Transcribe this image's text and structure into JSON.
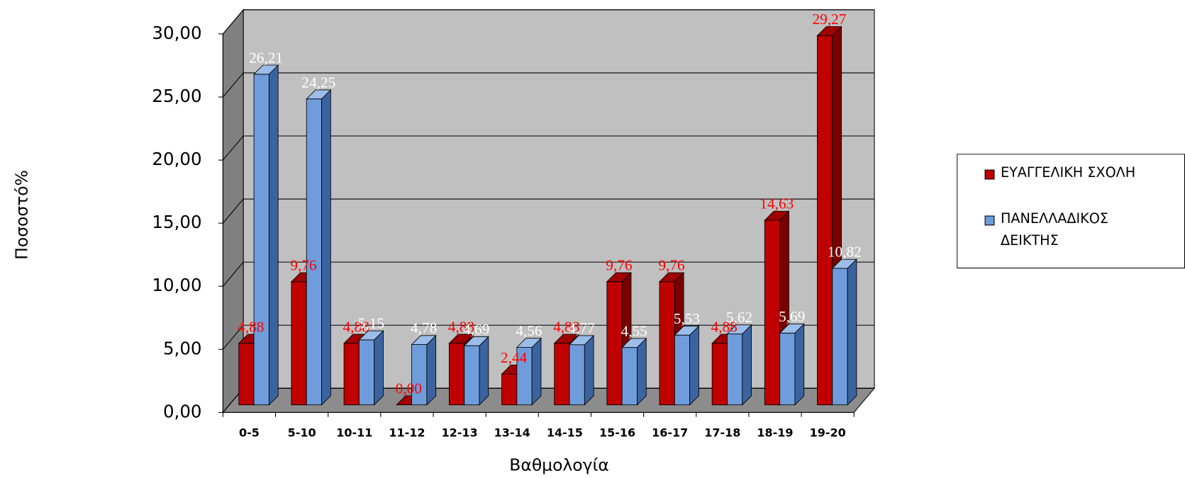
{
  "chart_data": {
    "type": "bar",
    "x_label": "Βαθμολογία",
    "y_label": "Ποσοστό%",
    "categories": [
      "0-5",
      "5-10",
      "10-11",
      "11-12",
      "12-13",
      "13-14",
      "14-15",
      "15-16",
      "16-17",
      "17-18",
      "18-19",
      "19-20"
    ],
    "series": [
      {
        "name": "ΕΥΑΓΓΕΛΙΚΗ ΣΧΟΛΗ",
        "color": "#c00000",
        "values": [
          4.88,
          9.76,
          4.88,
          0.0,
          4.88,
          2.44,
          4.88,
          9.76,
          9.76,
          4.88,
          14.63,
          29.27
        ],
        "value_labels": [
          "4,88",
          "9,76",
          "4,88",
          "0,00",
          "4,88",
          "2,44",
          "4,88",
          "9,76",
          "9,76",
          "4,88",
          "14,63",
          "29,27"
        ]
      },
      {
        "name": "ΠΑΝΕΛΛΑΔΙΚΟΣ ΔΕΙΚΤΗΣ",
        "color": "#6f9ddb",
        "values": [
          26.21,
          24.25,
          5.15,
          4.78,
          4.69,
          4.56,
          4.77,
          4.55,
          5.53,
          5.62,
          5.69,
          10.82
        ],
        "value_labels": [
          "26,21",
          "24,25",
          "5,15",
          "4,78",
          "4,69",
          "4,56",
          "4,77",
          "4,55",
          "5,53",
          "5,62",
          "5,69",
          "10,82"
        ]
      }
    ],
    "ylim": [
      0,
      30
    ],
    "yticks": [
      {
        "value": 0,
        "label": "0,00"
      },
      {
        "value": 5,
        "label": "5,00"
      },
      {
        "value": 10,
        "label": "10,00"
      },
      {
        "value": 15,
        "label": "15,00"
      },
      {
        "value": 20,
        "label": "20,00"
      },
      {
        "value": 25,
        "label": "25,00"
      },
      {
        "value": 30,
        "label": "30,00"
      }
    ],
    "grid": true,
    "legend": "right"
  }
}
